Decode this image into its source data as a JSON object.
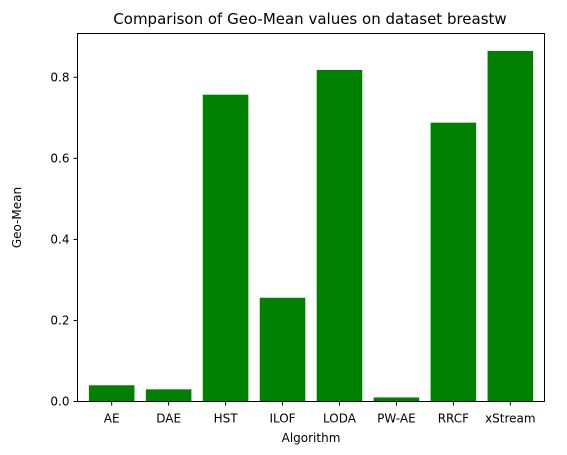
{
  "chart_data": {
    "type": "bar",
    "title": "Comparison of Geo-Mean values on dataset breastw",
    "xlabel": "Algorithm",
    "ylabel": "Geo-Mean",
    "categories": [
      "AE",
      "DAE",
      "HST",
      "ILOF",
      "LODA",
      "PW-AE",
      "RRCF",
      "xStream"
    ],
    "values": [
      0.04,
      0.03,
      0.757,
      0.256,
      0.818,
      0.01,
      0.688,
      0.865
    ],
    "ylim": [
      0,
      0.908
    ],
    "yticks": [
      0.0,
      0.2,
      0.4,
      0.6,
      0.8
    ],
    "ytick_labels": [
      "0.0",
      "0.2",
      "0.4",
      "0.6",
      "0.8"
    ],
    "bar_color": "#008000",
    "grid": false,
    "legend": "none"
  }
}
